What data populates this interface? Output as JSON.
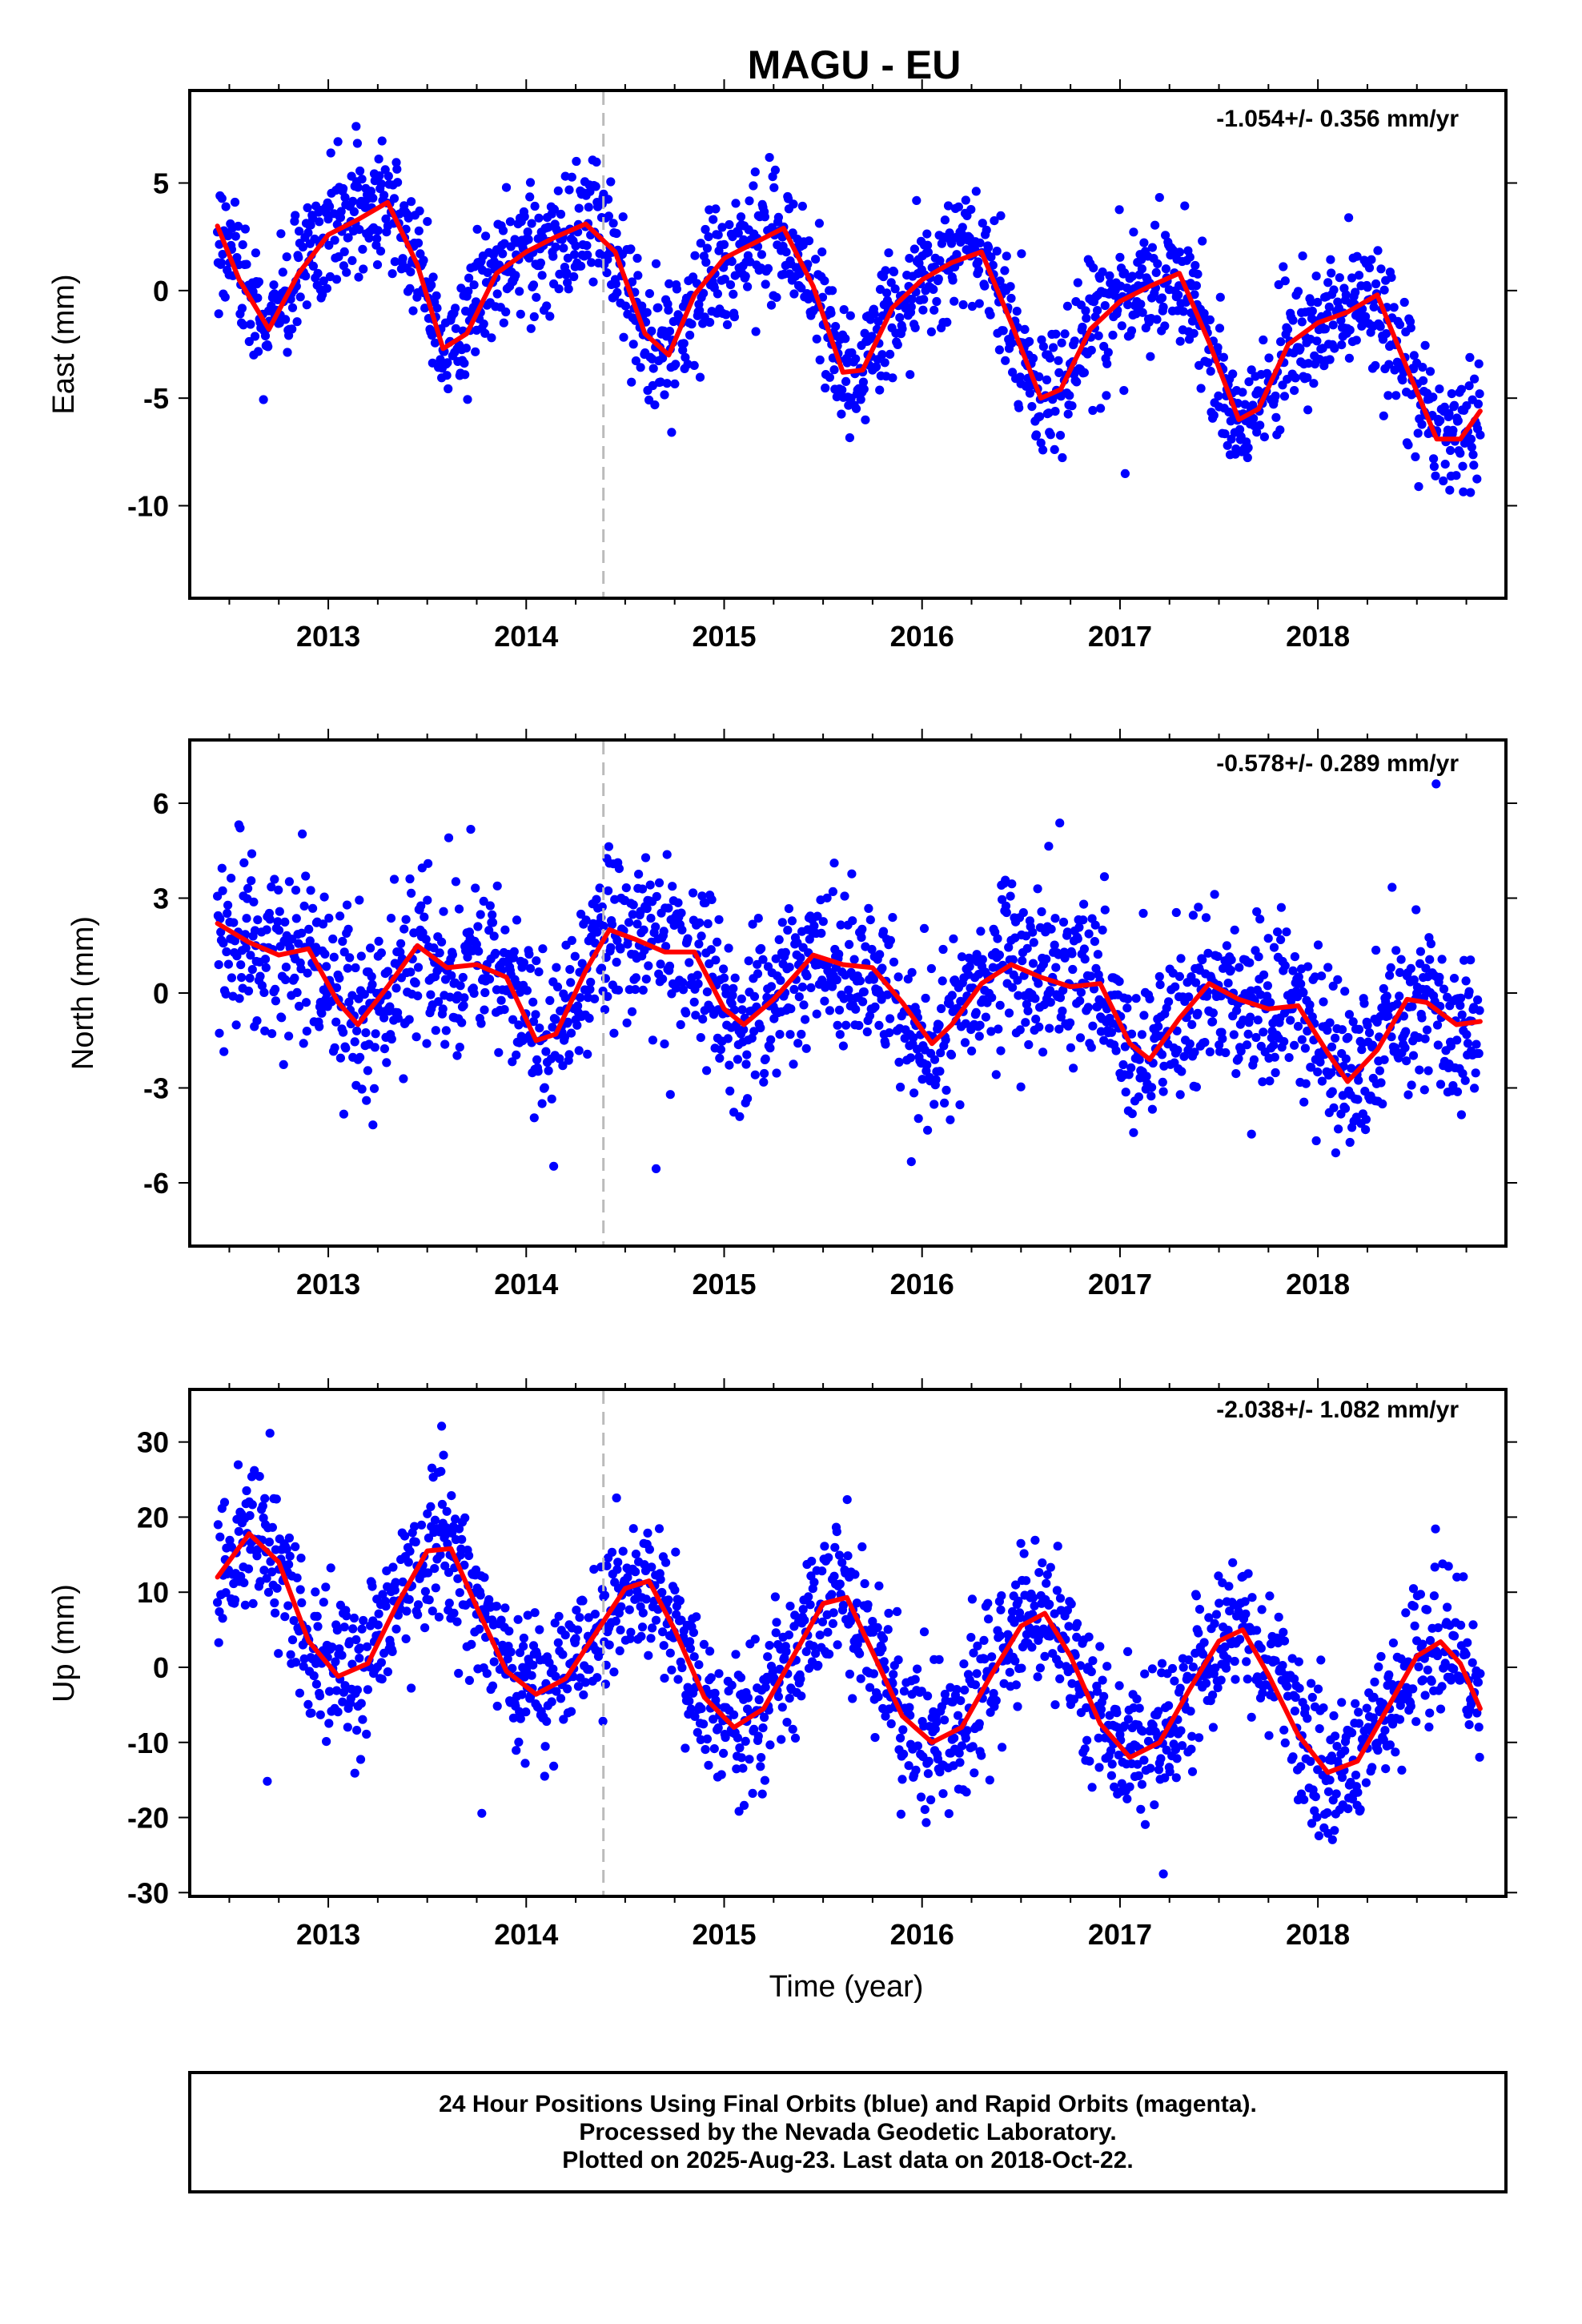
{
  "title": "MAGU - EU",
  "xlabel": "Time (year)",
  "colors": {
    "points": "#0000ff",
    "fit": "#ff0000",
    "marker_line": "#bbbbbb"
  },
  "footer": [
    "24 Hour Positions Using Final Orbits (blue) and Rapid Orbits (magenta).",
    "Processed by the Nevada Geodetic Laboratory.",
    "Plotted on 2025-Aug-23. Last data on 2018-Oct-22."
  ],
  "chart_data": [
    {
      "type": "scatter",
      "ylabel": "East (mm)",
      "rate": "-1.054+/- 0.356 mm/yr",
      "xlim": [
        2012.3,
        2018.95
      ],
      "ylim": [
        -14.3,
        9.3
      ],
      "x_ticks": [
        2013,
        2014,
        2015,
        2016,
        2017,
        2018
      ],
      "y_ticks": [
        5,
        0,
        -5,
        -10
      ],
      "vline": 2014.39,
      "grid": false,
      "fit": {
        "x": [
          2012.44,
          2012.55,
          2012.7,
          2012.85,
          2013.0,
          2013.15,
          2013.3,
          2013.45,
          2013.58,
          2013.7,
          2013.85,
          2014.0,
          2014.15,
          2014.3,
          2014.45,
          2014.6,
          2014.72,
          2014.85,
          2015.0,
          2015.15,
          2015.3,
          2015.45,
          2015.6,
          2015.7,
          2015.85,
          2016.0,
          2016.15,
          2016.3,
          2016.45,
          2016.6,
          2016.7,
          2016.85,
          2017.0,
          2017.15,
          2017.3,
          2017.45,
          2017.6,
          2017.7,
          2017.85,
          2018.0,
          2018.15,
          2018.3,
          2018.45,
          2018.6,
          2018.72,
          2018.82
        ],
        "y": [
          3.0,
          0.5,
          -1.8,
          0.8,
          2.6,
          3.3,
          4.1,
          1.2,
          -2.7,
          -2.0,
          0.8,
          1.8,
          2.5,
          3.1,
          1.8,
          -2.0,
          -3.0,
          -0.2,
          1.5,
          2.2,
          2.9,
          0.2,
          -3.8,
          -3.7,
          -0.8,
          0.5,
          1.3,
          1.8,
          -1.5,
          -5.0,
          -4.6,
          -1.8,
          -0.5,
          0.2,
          0.8,
          -2.4,
          -6.0,
          -5.5,
          -2.5,
          -1.5,
          -1.0,
          -0.2,
          -3.6,
          -6.9,
          -6.9,
          -5.6
        ]
      },
      "scatter": {
        "amp": 3.6,
        "phase": 0.85,
        "trend": -1.054,
        "noise": 1.5,
        "outlier_range": [
          -13.7,
          8.7
        ]
      }
    },
    {
      "type": "scatter",
      "ylabel": "North (mm)",
      "rate": "-0.578+/- 0.289 mm/yr",
      "xlim": [
        2012.3,
        2018.95
      ],
      "ylim": [
        -8.0,
        8.0
      ],
      "x_ticks": [
        2013,
        2014,
        2015,
        2016,
        2017,
        2018
      ],
      "y_ticks": [
        6,
        3,
        0,
        -3,
        -6
      ],
      "vline": 2014.39,
      "grid": false,
      "fit": {
        "x": [
          2012.44,
          2012.6,
          2012.75,
          2012.9,
          2013.05,
          2013.15,
          2013.3,
          2013.45,
          2013.6,
          2013.75,
          2013.9,
          2014.05,
          2014.15,
          2014.3,
          2014.42,
          2014.55,
          2014.7,
          2014.85,
          2015.0,
          2015.1,
          2015.25,
          2015.45,
          2015.6,
          2015.75,
          2015.9,
          2016.05,
          2016.15,
          2016.3,
          2016.45,
          2016.6,
          2016.75,
          2016.9,
          2017.05,
          2017.15,
          2017.3,
          2017.45,
          2017.6,
          2017.75,
          2017.9,
          2018.05,
          2018.15,
          2018.3,
          2018.45,
          2018.55,
          2018.7,
          2018.82
        ],
        "y": [
          2.2,
          1.6,
          1.2,
          1.4,
          -0.3,
          -1.0,
          0.2,
          1.5,
          0.8,
          0.9,
          0.5,
          -1.5,
          -1.3,
          0.7,
          2.0,
          1.7,
          1.3,
          1.3,
          -0.5,
          -1.0,
          -0.2,
          1.2,
          0.9,
          0.8,
          -0.3,
          -1.6,
          -1.0,
          0.3,
          0.9,
          0.5,
          0.2,
          0.3,
          -1.6,
          -2.1,
          -0.8,
          0.3,
          -0.2,
          -0.5,
          -0.4,
          -1.9,
          -2.8,
          -1.8,
          -0.2,
          -0.3,
          -1.0,
          -0.9
        ]
      },
      "scatter": {
        "amp": 1.4,
        "phase": 0.4,
        "trend": -0.578,
        "noise": 1.3,
        "outlier_range": [
          -7.9,
          7.7
        ]
      }
    },
    {
      "type": "scatter",
      "ylabel": "Up (mm)",
      "rate": "-2.038+/- 1.082 mm/yr",
      "xlim": [
        2012.3,
        2018.95
      ],
      "ylim": [
        -30.5,
        37.0
      ],
      "x_ticks": [
        2013,
        2014,
        2015,
        2016,
        2017,
        2018
      ],
      "y_ticks": [
        30,
        20,
        10,
        0,
        -10,
        -20,
        -30
      ],
      "vline": 2014.39,
      "grid": false,
      "fit": {
        "x": [
          2012.44,
          2012.6,
          2012.75,
          2012.9,
          2013.05,
          2013.2,
          2013.35,
          2013.5,
          2013.62,
          2013.75,
          2013.9,
          2014.05,
          2014.2,
          2014.35,
          2014.5,
          2014.62,
          2014.75,
          2014.9,
          2015.05,
          2015.2,
          2015.35,
          2015.5,
          2015.62,
          2015.75,
          2015.9,
          2016.05,
          2016.2,
          2016.35,
          2016.5,
          2016.62,
          2016.75,
          2016.9,
          2017.05,
          2017.2,
          2017.35,
          2017.5,
          2017.62,
          2017.75,
          2017.9,
          2018.05,
          2018.2,
          2018.35,
          2018.5,
          2018.62,
          2018.72,
          2018.82
        ],
        "y": [
          12.0,
          17.8,
          14.0,
          3.5,
          -1.2,
          0.5,
          8.5,
          15.5,
          15.8,
          8.0,
          -0.5,
          -3.6,
          -1.5,
          4.5,
          10.5,
          11.5,
          5.0,
          -4.0,
          -8.0,
          -5.5,
          1.5,
          8.5,
          9.3,
          2.0,
          -6.5,
          -10.0,
          -8.0,
          -1.0,
          5.5,
          7.2,
          1.5,
          -7.5,
          -12.0,
          -10.0,
          -3.0,
          3.5,
          5.0,
          -1.0,
          -9.0,
          -14.0,
          -12.5,
          -5.5,
          1.5,
          3.4,
          0.5,
          -5.5
        ]
      },
      "scatter": {
        "amp": 14.0,
        "phase": 0.15,
        "trend": -2.038,
        "noise": 5.0,
        "outlier_range": [
          -29.5,
          35.5
        ]
      }
    }
  ]
}
